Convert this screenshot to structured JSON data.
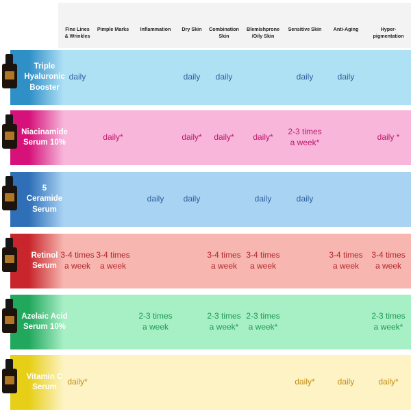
{
  "columns": [
    "Fine Lines\n& Wrinkles",
    "Pimple Marks",
    "Inflammation",
    "Dry Skin",
    "Combination\nSkin",
    "Blemishprone\n/Oily Skin",
    "Sensitive Skin",
    "Anti-Aging",
    "Hyper-\npigmentation"
  ],
  "products": [
    {
      "name": "Triple Hyaluronic Booster",
      "name_lines": [
        "Triple",
        "Hyaluronic",
        "Booster"
      ],
      "band_color": "#afe1f5",
      "gradient_color": "#2f8fc7",
      "text_color": "#2f5f9c",
      "cells": [
        "daily",
        "",
        "",
        "daily",
        "daily",
        "",
        "daily",
        "daily",
        ""
      ]
    },
    {
      "name": "Niacinamide Serum 10%",
      "name_lines": [
        "Niacinamide",
        "Serum 10%"
      ],
      "band_color": "#f7b6da",
      "gradient_color": "#d6127a",
      "text_color": "#c0166d",
      "cells": [
        "",
        "daily*",
        "",
        "daily*",
        "daily*",
        "daily*",
        "2-3 times\na week*",
        "",
        "daily *"
      ]
    },
    {
      "name": "5 Ceramide Serum",
      "name_lines": [
        "5",
        "Ceramide",
        "Serum"
      ],
      "band_color": "#a9d3f2",
      "gradient_color": "#2e6fb8",
      "text_color": "#2f5f9c",
      "cells": [
        "",
        "",
        "daily",
        "daily",
        "",
        "daily",
        "daily",
        "",
        ""
      ]
    },
    {
      "name": "Retinol Serum",
      "name_lines": [
        "Retinol",
        "Serum"
      ],
      "band_color": "#f7b6b0",
      "gradient_color": "#c8262c",
      "text_color": "#b3262b",
      "cells": [
        "3-4 times\na week",
        "3-4 times\na week",
        "",
        "",
        "3-4 times\na week",
        "3-4 times\na week",
        "",
        "3-4 times\na week",
        "3-4 times\na week"
      ]
    },
    {
      "name": "Azelaic Acid Serum 10%",
      "name_lines": [
        "Azelaic Acid",
        "Serum 10%"
      ],
      "band_color": "#a7efc5",
      "gradient_color": "#22a85d",
      "text_color": "#1e9a55",
      "cells": [
        "",
        "",
        "2-3 times\na week",
        "",
        "2-3 times\na week*",
        "2-3 times\na week*",
        "",
        "",
        "2-3 times\na week*"
      ]
    },
    {
      "name": "Vitamin C Serum",
      "name_lines": [
        "Vitamin C",
        "Serum"
      ],
      "band_color": "#fdf3c4",
      "gradient_color": "#e6cf16",
      "text_color": "#c28c14",
      "cells": [
        "daily*",
        "",
        "",
        "",
        "",
        "",
        "daily*",
        "daily",
        "daily*"
      ]
    }
  ]
}
